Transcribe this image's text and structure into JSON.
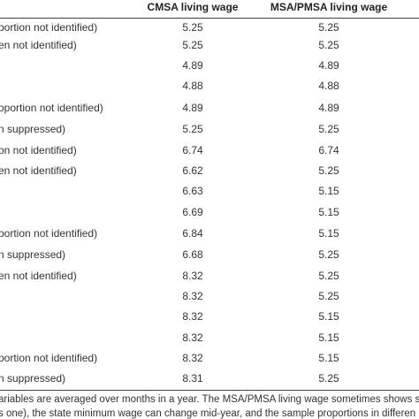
{
  "table": {
    "header": [
      "CMSA living wage",
      "MSA/PMSA living wage"
    ],
    "rows": [
      {
        "label": "portion not identified)",
        "cells": [
          "5.25",
          "5.25"
        ]
      },
      {
        "label": "en not identified)",
        "cells": [
          "5.25",
          "5.25"
        ]
      },
      {
        "cells": [
          "4.89",
          "4.89"
        ]
      },
      {
        "cells": [
          "4.88",
          "4.88"
        ]
      },
      {
        "label": "oportion not identified)",
        "cells": [
          "4.89",
          "4.89"
        ]
      },
      {
        "label": "n suppressed)",
        "cells": [
          "5.25",
          "5.25"
        ]
      },
      {
        "label": "on not identified)",
        "cells": [
          "6.74",
          "6.74"
        ]
      },
      {
        "label": "en not identified)",
        "cells": [
          "6.62",
          "5.25"
        ]
      },
      {
        "cells": [
          "6.63",
          "5.15"
        ]
      },
      {
        "cells": [
          "6.69",
          "5.15"
        ]
      },
      {
        "label": "portion not identified)",
        "cells": [
          "6.84",
          "5.15"
        ]
      },
      {
        "label": "n suppressed)",
        "cells": [
          "6.68",
          "5.25"
        ]
      },
      {
        "label": "en not identified)",
        "cells": [
          "8.32",
          "5.25"
        ]
      },
      {
        "cells": [
          "8.32",
          "5.25"
        ]
      },
      {
        "cells": [
          "8.32",
          "5.15"
        ]
      },
      {
        "cells": [
          "8.32",
          "5.15"
        ]
      },
      {
        "label": "portion not identified)",
        "cells": [
          "8.32",
          "5.15"
        ]
      },
      {
        "label": "n suppressed)",
        "cells": [
          "8.31",
          "5.25"
        ]
      }
    ]
  },
  "footnote": [
    "ariables are averaged over months in a year. The MSA/PMSA living wage sometimes shows sma",
    "s one), the state minimum wage can change mid-year, and the sample proportions in differen"
  ]
}
